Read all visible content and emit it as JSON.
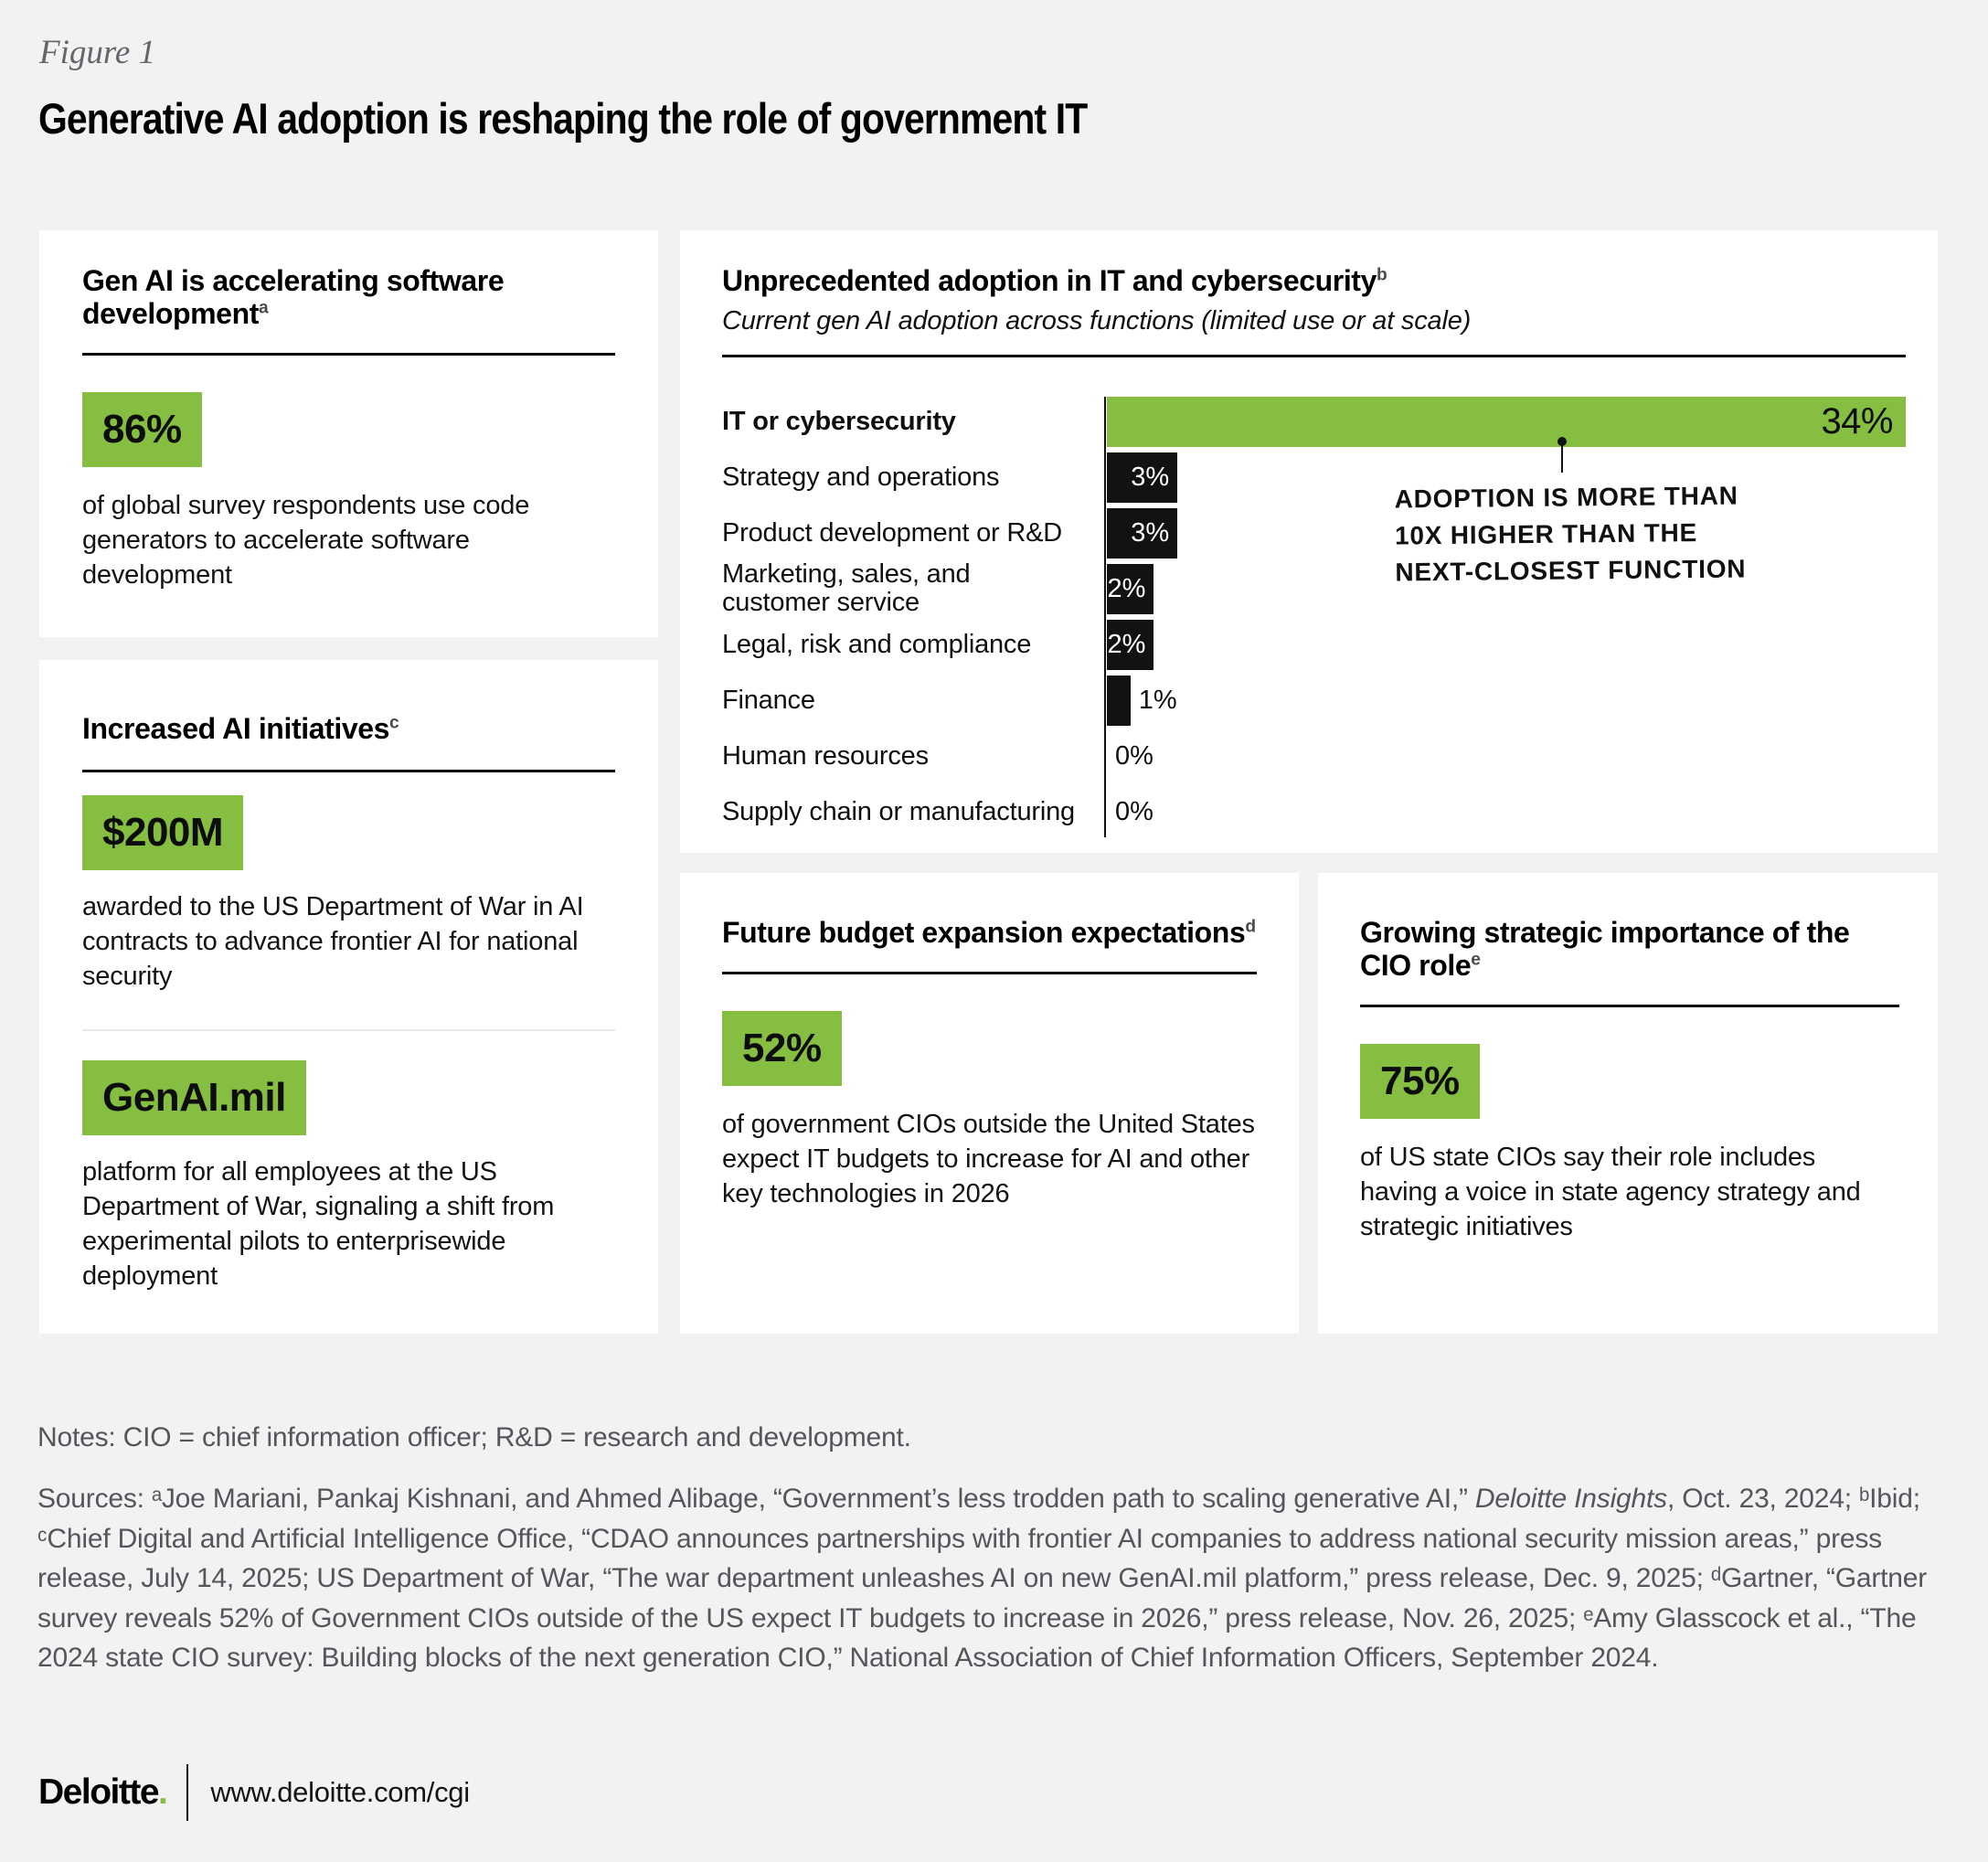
{
  "figure_label": "Figure 1",
  "title": "Generative AI adoption is reshaping the role of government IT",
  "colors": {
    "accent_green": "#85BE41",
    "bar_black": "#121212",
    "background": "#F2F2F3"
  },
  "panels": {
    "software": {
      "title": "Gen AI is accelerating software development",
      "sup": "a",
      "stat": "86%",
      "body": "of global survey respondents use code generators to accelerate software development"
    },
    "initiatives": {
      "title": "Increased AI initiatives",
      "sup": "c",
      "stat1": "$200M",
      "body1": "awarded to the US Department of War in AI contracts to advance frontier AI for national security",
      "stat2": "GenAI.mil",
      "body2": "platform for all employees at the US Department of War, signaling a shift from experimental pilots to enterprisewide deployment"
    },
    "budget": {
      "title": "Future budget expansion expectations",
      "sup": "d",
      "stat": "52%",
      "body": "of government CIOs outside the United States expect IT budgets to increase for AI and other key technologies in 2026"
    },
    "cio": {
      "title": "Growing strategic importance of the CIO role",
      "sup": "e",
      "stat": "75%",
      "body": "of US state CIOs say their role includes having a voice in state agency strategy and strategic initiatives"
    }
  },
  "chart_data": {
    "type": "bar",
    "orientation": "horizontal",
    "title": "Unprecedented adoption in IT and cybersecurity",
    "title_sup": "b",
    "subtitle": "Current gen AI adoption across functions (limited use or at scale)",
    "categories": [
      "IT or cybersecurity",
      "Strategy and operations",
      "Product development or R&D",
      "Marketing, sales, and\ncustomer service",
      "Legal, risk and compliance",
      "Finance",
      "Human resources",
      "Supply chain or manufacturing"
    ],
    "values": [
      34,
      3,
      3,
      2,
      2,
      1,
      0,
      0
    ],
    "value_labels": [
      "34%",
      "3%",
      "3%",
      "2%",
      "2%",
      "1%",
      "0%",
      "0%"
    ],
    "xlim": [
      0,
      34
    ],
    "grid": false,
    "legend": false,
    "highlight_index": 0,
    "highlight_color": "#85BE41",
    "bar_color": "#121212",
    "annotation": "Adoption is more than 10x higher than the next-closest function",
    "annotation_lines": [
      "ADOPTION IS MORE THAN",
      "10X HIGHER THAN THE",
      "NEXT-CLOSEST FUNCTION"
    ]
  },
  "notes": "Notes: CIO = chief information officer; R&D = research and development.",
  "sources": {
    "part1": "Sources: ᵃJoe Mariani, Pankaj Kishnani, and Ahmed Alibage, “Government’s less trodden path to scaling generative AI,” ",
    "italic": "Deloitte Insights",
    "part2": ", Oct. 23, 2024; ᵇIbid; ᶜChief Digital and Artificial Intelligence Office, “CDAO announces partnerships with frontier AI companies to address national security mission areas,” press release, July 14, 2025; US Department of War, “The war department unleashes AI on new GenAI.mil platform,” press release, Dec. 9, 2025; ᵈGartner, “Gartner survey reveals 52% of Government CIOs outside of the US expect IT budgets to increase in 2026,” press release, Nov. 26, 2025; ᵉAmy Glasscock et al., “The 2024 state CIO survey: Building blocks of the next generation CIO,” National Association of Chief Information Officers, September 2024."
  },
  "footer": {
    "brand": "Deloitte",
    "brand_dot": ".",
    "url": "www.deloitte.com/cgi"
  }
}
